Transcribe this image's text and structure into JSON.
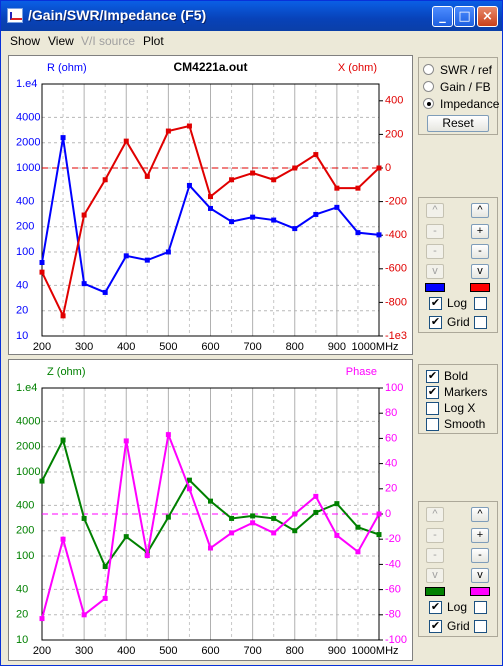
{
  "window": {
    "title": "/Gain/SWR/Impedance (F5)"
  },
  "menu": [
    {
      "label": "Show",
      "enabled": true
    },
    {
      "label": "View",
      "enabled": true
    },
    {
      "label": "V/I source",
      "enabled": false
    },
    {
      "label": "Plot",
      "enabled": true
    }
  ],
  "panel_mode": {
    "options": [
      {
        "label": "SWR / ref",
        "selected": false
      },
      {
        "label": "Gain / FB",
        "selected": false
      },
      {
        "label": "Impedance",
        "selected": true
      }
    ],
    "reset": "Reset"
  },
  "panel_scale_top": {
    "left_buttons": [
      "^",
      "-",
      "-",
      "v"
    ],
    "right_buttons": [
      "^",
      "+",
      "-",
      "v"
    ],
    "left_color": "#0000ff",
    "right_color": "#ff0000",
    "log_label": "Log",
    "log_checked": true,
    "log2_checked": false,
    "grid_label": "Grid",
    "grid_checked": true,
    "grid2_checked": false
  },
  "panel_opts": {
    "items": [
      {
        "label": "Bold",
        "checked": true
      },
      {
        "label": "Markers",
        "checked": true
      },
      {
        "label": "Log X",
        "checked": false
      },
      {
        "label": "Smooth",
        "checked": false
      }
    ]
  },
  "panel_scale_bot": {
    "left_buttons": [
      "^",
      "-",
      "-",
      "v"
    ],
    "right_buttons": [
      "^",
      "+",
      "-",
      "v"
    ],
    "left_color": "#008000",
    "right_color": "#ff00ff",
    "log_label": "Log",
    "log_checked": true,
    "log2_checked": false,
    "grid_label": "Grid",
    "grid_checked": true,
    "grid2_checked": false
  },
  "chart_data": [
    {
      "type": "line",
      "title": "CM4221a.out",
      "ylabel_left": "R (ohm)",
      "ylabel_right": "X (ohm)",
      "x": [
        200,
        250,
        300,
        350,
        400,
        450,
        500,
        550,
        600,
        650,
        700,
        750,
        800,
        850,
        900,
        950,
        1000
      ],
      "x_ticks": [
        "200",
        "300",
        "400",
        "500",
        "600",
        "700",
        "800",
        "900",
        "1000MHz"
      ],
      "x_tick_values": [
        200,
        300,
        400,
        500,
        600,
        700,
        800,
        900,
        1000
      ],
      "left_scale": "log",
      "left_ylim": [
        10,
        10000
      ],
      "left_ticks": [
        "1.e4",
        "4000",
        "2000",
        "1000",
        "400",
        "200",
        "100",
        "40",
        "20",
        "10"
      ],
      "left_tick_values": [
        10000,
        4000,
        2000,
        1000,
        400,
        200,
        100,
        40,
        20,
        10
      ],
      "right_ylim": [
        -1000,
        500
      ],
      "right_ticks": [
        "400",
        "200",
        "0",
        "-200",
        "-400",
        "-600",
        "-800",
        "-1e3"
      ],
      "right_tick_values": [
        400,
        200,
        0,
        -200,
        -400,
        -600,
        -800,
        -1000
      ],
      "ref_line_value": 0,
      "series": [
        {
          "name": "R (ohm)",
          "axis": "left",
          "color": "#0000ff",
          "values": [
            75,
            2300,
            42,
            33,
            90,
            80,
            100,
            620,
            330,
            230,
            260,
            240,
            190,
            280,
            340,
            170,
            160
          ]
        },
        {
          "name": "X (ohm)",
          "axis": "right",
          "color": "#e00000",
          "values": [
            -620,
            -880,
            -280,
            -70,
            160,
            -50,
            220,
            250,
            -170,
            -70,
            -30,
            -70,
            0,
            80,
            -120,
            -120,
            0
          ]
        }
      ]
    },
    {
      "type": "line",
      "title": "",
      "ylabel_left": "Z (ohm)",
      "ylabel_right": "Phase",
      "x": [
        200,
        250,
        300,
        350,
        400,
        450,
        500,
        550,
        600,
        650,
        700,
        750,
        800,
        850,
        900,
        950,
        1000
      ],
      "x_ticks": [
        "200",
        "300",
        "400",
        "500",
        "600",
        "700",
        "800",
        "900",
        "1000MHz"
      ],
      "x_tick_values": [
        200,
        300,
        400,
        500,
        600,
        700,
        800,
        900,
        1000
      ],
      "left_scale": "log",
      "left_ylim": [
        10,
        10000
      ],
      "left_ticks": [
        "1.e4",
        "4000",
        "2000",
        "1000",
        "400",
        "200",
        "100",
        "40",
        "20",
        "10"
      ],
      "left_tick_values": [
        10000,
        4000,
        2000,
        1000,
        400,
        200,
        100,
        40,
        20,
        10
      ],
      "right_ylim": [
        -100,
        100
      ],
      "right_ticks": [
        "100",
        "80",
        "60",
        "40",
        "20",
        "0",
        "-20",
        "-40",
        "-60",
        "-80",
        "-100"
      ],
      "right_tick_values": [
        100,
        80,
        60,
        40,
        20,
        0,
        -20,
        -40,
        -60,
        -80,
        -100
      ],
      "ref_line_value": 0,
      "series": [
        {
          "name": "Z (ohm)",
          "axis": "left",
          "color": "#008000",
          "values": [
            780,
            2400,
            280,
            75,
            170,
            110,
            290,
            800,
            450,
            280,
            300,
            280,
            200,
            330,
            420,
            220,
            180
          ]
        },
        {
          "name": "Phase",
          "axis": "right",
          "color": "#ff00ff",
          "values": [
            -83,
            -20,
            -80,
            -67,
            58,
            -33,
            63,
            20,
            -27,
            -15,
            -7,
            -15,
            0,
            14,
            -17,
            -30,
            0
          ]
        }
      ]
    }
  ]
}
